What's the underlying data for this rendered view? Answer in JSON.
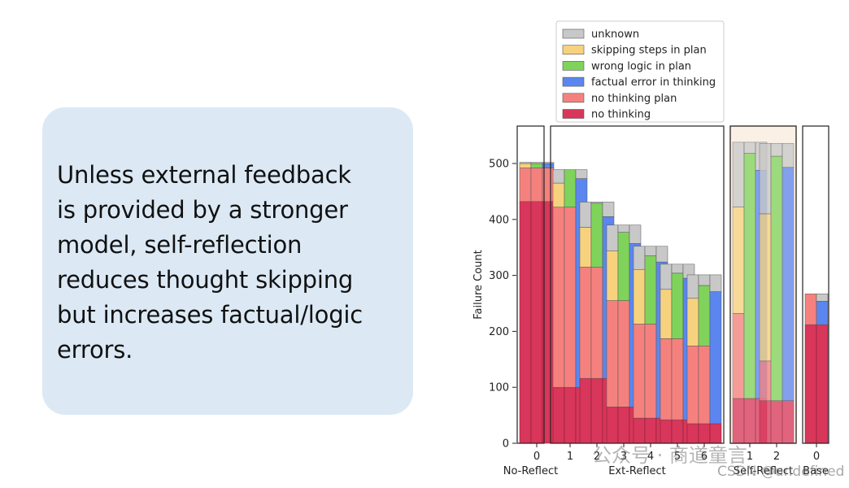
{
  "callout": {
    "lines": [
      "Unless external feedback",
      "is provided by a stronger",
      "model, self-reflection",
      "reduces thought skipping",
      "but increases factual/logic",
      "errors."
    ]
  },
  "watermark": {
    "text": "公众号 · 商道童言",
    "sub": "CSDN @undefined"
  },
  "chart_data": {
    "type": "bar",
    "stacked": true,
    "title": "",
    "xlabel": "",
    "ylabel": "Failure Count",
    "ylim": [
      0,
      580
    ],
    "yticks": [
      0,
      100,
      200,
      300,
      400,
      500
    ],
    "legend_position": "top",
    "categories_order": [
      "unknown",
      "skipping steps in plan",
      "wrong logic in plan",
      "factual error in thinking",
      "no thinking plan",
      "no thinking"
    ],
    "legend": [
      {
        "name": "unknown",
        "color": "#c8c8c8"
      },
      {
        "name": "skipping steps in plan",
        "color": "#f7d27e"
      },
      {
        "name": "wrong logic in plan",
        "color": "#7fd35b"
      },
      {
        "name": "factual error in thinking",
        "color": "#5b86f0"
      },
      {
        "name": "no thinking plan",
        "color": "#f5817f"
      },
      {
        "name": "no thinking",
        "color": "#d8365a"
      }
    ],
    "groups": [
      {
        "name": "No-Reflect",
        "highlight": false,
        "ticks": [
          {
            "label": "0",
            "bars": [
              {
                "stack": [
                  {
                    "category": "no thinking",
                    "value": 432
                  },
                  {
                    "category": "no thinking plan",
                    "value": 60
                  },
                  {
                    "category": "skipping steps in plan",
                    "value": 8
                  },
                  {
                    "category": "unknown",
                    "value": 2
                  }
                ]
              },
              {
                "stack": [
                  {
                    "category": "no thinking",
                    "value": 432
                  },
                  {
                    "category": "no thinking plan",
                    "value": 60
                  },
                  {
                    "category": "wrong logic in plan",
                    "value": 8
                  },
                  {
                    "category": "unknown",
                    "value": 2
                  }
                ]
              },
              {
                "stack": [
                  {
                    "category": "no thinking",
                    "value": 432
                  },
                  {
                    "category": "no thinking plan",
                    "value": 60
                  },
                  {
                    "category": "factual error in thinking",
                    "value": 8
                  },
                  {
                    "category": "unknown",
                    "value": 2
                  }
                ]
              }
            ]
          }
        ]
      },
      {
        "name": "Ext-Reflect",
        "highlight": false,
        "ticks": [
          {
            "label": "1",
            "bars": [
              {
                "stack": [
                  {
                    "category": "no thinking",
                    "value": 100
                  },
                  {
                    "category": "no thinking plan",
                    "value": 322
                  },
                  {
                    "category": "skipping steps in plan",
                    "value": 43
                  },
                  {
                    "category": "unknown",
                    "value": 24
                  }
                ]
              },
              {
                "stack": [
                  {
                    "category": "no thinking",
                    "value": 100
                  },
                  {
                    "category": "no thinking plan",
                    "value": 322
                  },
                  {
                    "category": "wrong logic in plan",
                    "value": 67
                  },
                  {
                    "category": "unknown",
                    "value": 0
                  }
                ]
              },
              {
                "stack": [
                  {
                    "category": "no thinking",
                    "value": 100
                  },
                  {
                    "category": "factual error in thinking",
                    "value": 373
                  },
                  {
                    "category": "unknown",
                    "value": 16
                  }
                ]
              }
            ]
          },
          {
            "label": "2",
            "bars": [
              {
                "stack": [
                  {
                    "category": "no thinking",
                    "value": 116
                  },
                  {
                    "category": "no thinking plan",
                    "value": 199
                  },
                  {
                    "category": "skipping steps in plan",
                    "value": 71
                  },
                  {
                    "category": "unknown",
                    "value": 45
                  }
                ]
              },
              {
                "stack": [
                  {
                    "category": "no thinking",
                    "value": 116
                  },
                  {
                    "category": "no thinking plan",
                    "value": 199
                  },
                  {
                    "category": "wrong logic in plan",
                    "value": 114
                  },
                  {
                    "category": "unknown",
                    "value": 2
                  }
                ]
              },
              {
                "stack": [
                  {
                    "category": "no thinking",
                    "value": 116
                  },
                  {
                    "category": "factual error in thinking",
                    "value": 289
                  },
                  {
                    "category": "unknown",
                    "value": 26
                  }
                ]
              }
            ]
          },
          {
            "label": "3",
            "bars": [
              {
                "stack": [
                  {
                    "category": "no thinking",
                    "value": 65
                  },
                  {
                    "category": "no thinking plan",
                    "value": 190
                  },
                  {
                    "category": "skipping steps in plan",
                    "value": 89
                  },
                  {
                    "category": "unknown",
                    "value": 46
                  }
                ]
              },
              {
                "stack": [
                  {
                    "category": "no thinking",
                    "value": 65
                  },
                  {
                    "category": "no thinking plan",
                    "value": 190
                  },
                  {
                    "category": "wrong logic in plan",
                    "value": 122
                  },
                  {
                    "category": "unknown",
                    "value": 13
                  }
                ]
              },
              {
                "stack": [
                  {
                    "category": "no thinking",
                    "value": 65
                  },
                  {
                    "category": "factual error in thinking",
                    "value": 292
                  },
                  {
                    "category": "unknown",
                    "value": 33
                  }
                ]
              }
            ]
          },
          {
            "label": "4",
            "bars": [
              {
                "stack": [
                  {
                    "category": "no thinking",
                    "value": 45
                  },
                  {
                    "category": "no thinking plan",
                    "value": 168
                  },
                  {
                    "category": "skipping steps in plan",
                    "value": 97
                  },
                  {
                    "category": "unknown",
                    "value": 42
                  }
                ]
              },
              {
                "stack": [
                  {
                    "category": "no thinking",
                    "value": 45
                  },
                  {
                    "category": "no thinking plan",
                    "value": 168
                  },
                  {
                    "category": "wrong logic in plan",
                    "value": 122
                  },
                  {
                    "category": "unknown",
                    "value": 17
                  }
                ]
              },
              {
                "stack": [
                  {
                    "category": "no thinking",
                    "value": 45
                  },
                  {
                    "category": "factual error in thinking",
                    "value": 279
                  },
                  {
                    "category": "unknown",
                    "value": 28
                  }
                ]
              }
            ]
          },
          {
            "label": "5",
            "bars": [
              {
                "stack": [
                  {
                    "category": "no thinking",
                    "value": 42
                  },
                  {
                    "category": "no thinking plan",
                    "value": 145
                  },
                  {
                    "category": "skipping steps in plan",
                    "value": 88
                  },
                  {
                    "category": "unknown",
                    "value": 45
                  }
                ]
              },
              {
                "stack": [
                  {
                    "category": "no thinking",
                    "value": 42
                  },
                  {
                    "category": "no thinking plan",
                    "value": 145
                  },
                  {
                    "category": "wrong logic in plan",
                    "value": 117
                  },
                  {
                    "category": "unknown",
                    "value": 16
                  }
                ]
              },
              {
                "stack": [
                  {
                    "category": "no thinking",
                    "value": 42
                  },
                  {
                    "category": "factual error in thinking",
                    "value": 253
                  },
                  {
                    "category": "unknown",
                    "value": 25
                  }
                ]
              }
            ]
          },
          {
            "label": "6",
            "bars": [
              {
                "stack": [
                  {
                    "category": "no thinking",
                    "value": 35
                  },
                  {
                    "category": "no thinking plan",
                    "value": 139
                  },
                  {
                    "category": "skipping steps in plan",
                    "value": 85
                  },
                  {
                    "category": "unknown",
                    "value": 42
                  }
                ]
              },
              {
                "stack": [
                  {
                    "category": "no thinking",
                    "value": 35
                  },
                  {
                    "category": "no thinking plan",
                    "value": 139
                  },
                  {
                    "category": "wrong logic in plan",
                    "value": 108
                  },
                  {
                    "category": "unknown",
                    "value": 19
                  }
                ]
              },
              {
                "stack": [
                  {
                    "category": "no thinking",
                    "value": 35
                  },
                  {
                    "category": "factual error in thinking",
                    "value": 236
                  },
                  {
                    "category": "unknown",
                    "value": 30
                  }
                ]
              }
            ]
          }
        ]
      },
      {
        "name": "Self-Reflect",
        "highlight": true,
        "ticks": [
          {
            "label": "1",
            "bars": [
              {
                "stack": [
                  {
                    "category": "no thinking",
                    "value": 80
                  },
                  {
                    "category": "no thinking plan",
                    "value": 152
                  },
                  {
                    "category": "skipping steps in plan",
                    "value": 190
                  },
                  {
                    "category": "unknown",
                    "value": 116
                  }
                ]
              },
              {
                "stack": [
                  {
                    "category": "no thinking",
                    "value": 80
                  },
                  {
                    "category": "no thinking plan",
                    "value": 0
                  },
                  {
                    "category": "wrong logic in plan",
                    "value": 438
                  },
                  {
                    "category": "unknown",
                    "value": 20
                  }
                ]
              },
              {
                "stack": [
                  {
                    "category": "no thinking",
                    "value": 80
                  },
                  {
                    "category": "factual error in thinking",
                    "value": 408
                  },
                  {
                    "category": "unknown",
                    "value": 50
                  }
                ]
              }
            ]
          },
          {
            "label": "2",
            "bars": [
              {
                "stack": [
                  {
                    "category": "no thinking",
                    "value": 76
                  },
                  {
                    "category": "no thinking plan",
                    "value": 71
                  },
                  {
                    "category": "skipping steps in plan",
                    "value": 263
                  },
                  {
                    "category": "unknown",
                    "value": 126
                  }
                ]
              },
              {
                "stack": [
                  {
                    "category": "no thinking",
                    "value": 76
                  },
                  {
                    "category": "wrong logic in plan",
                    "value": 437
                  },
                  {
                    "category": "unknown",
                    "value": 23
                  }
                ]
              },
              {
                "stack": [
                  {
                    "category": "no thinking",
                    "value": 76
                  },
                  {
                    "category": "factual error in thinking",
                    "value": 417
                  },
                  {
                    "category": "unknown",
                    "value": 43
                  }
                ]
              }
            ]
          }
        ]
      },
      {
        "name": "Base",
        "highlight": false,
        "ticks": [
          {
            "label": "0",
            "bars": [
              {
                "stack": [
                  {
                    "category": "no thinking",
                    "value": 212
                  },
                  {
                    "category": "no thinking plan",
                    "value": 55
                  }
                ]
              },
              {
                "stack": [
                  {
                    "category": "no thinking",
                    "value": 212
                  },
                  {
                    "category": "factual error in thinking",
                    "value": 42
                  },
                  {
                    "category": "unknown",
                    "value": 13
                  }
                ]
              }
            ]
          }
        ]
      }
    ]
  }
}
